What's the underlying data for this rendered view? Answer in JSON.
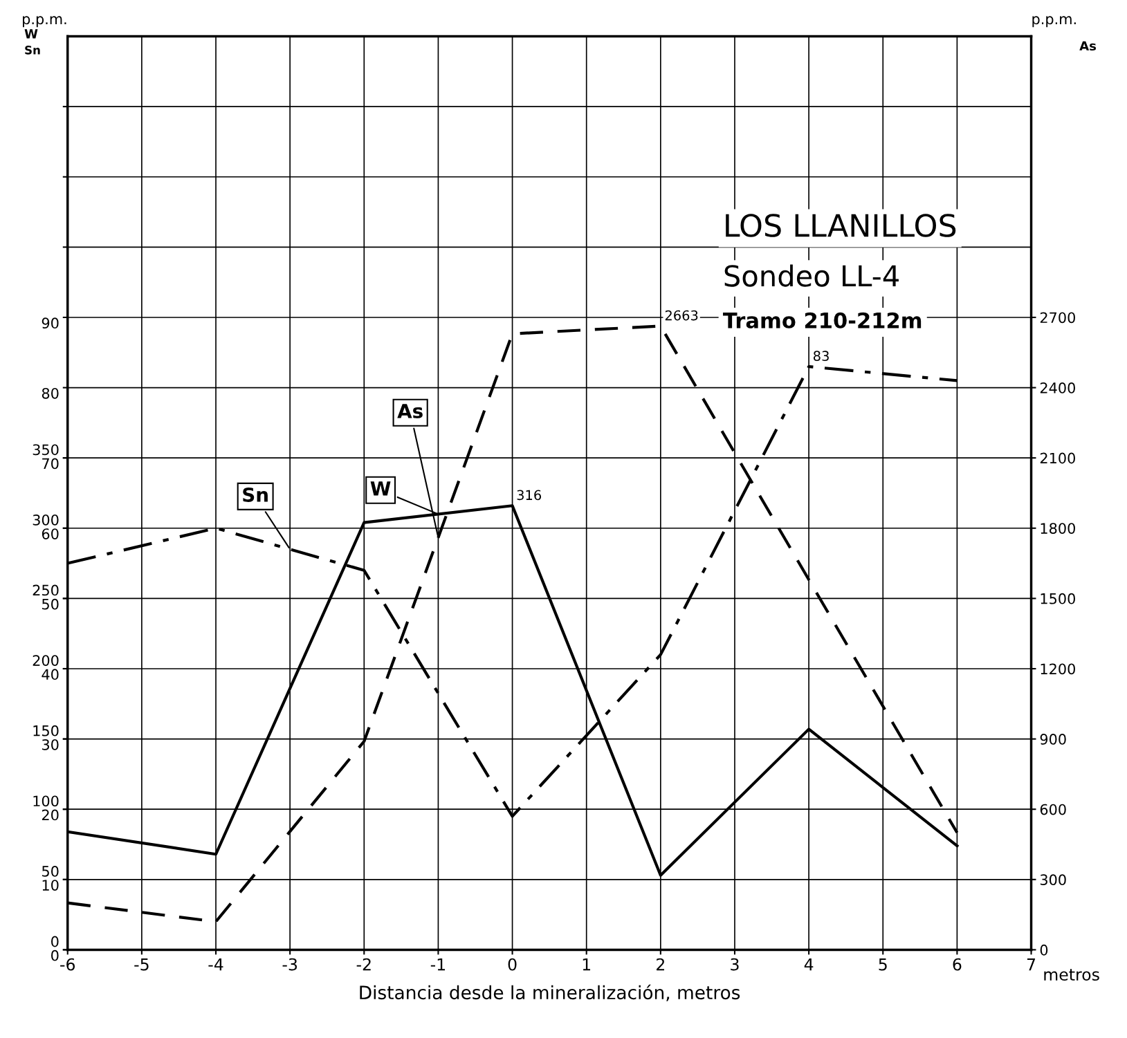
{
  "chart_data": {
    "type": "line",
    "title": "LOS LLANILLOS",
    "subtitle": "Sondeo LL-4",
    "xlabel": "Distancia desde la mineralización, metros",
    "ylabel": "p.p.m.",
    "y2label": "p.p.m.",
    "annotations": [
      "Tramo 210-212m",
      "metros",
      "W",
      "Sn",
      "As"
    ],
    "x": [
      -6,
      -4,
      -2,
      0,
      2,
      4,
      6
    ],
    "series": [
      {
        "name": "W",
        "color": "#000000",
        "line_style": "solid",
        "axis": "y3",
        "values": [
          84,
          68,
          304,
          316,
          53,
          157,
          74
        ],
        "value_labels": [
          null,
          null,
          null,
          "316",
          null,
          null,
          null
        ]
      },
      {
        "name": "Sn",
        "color": "#000000",
        "line_style": "dashdot",
        "axis": "y",
        "values": [
          55,
          60,
          54,
          19,
          42,
          83,
          81
        ],
        "value_labels": [
          null,
          null,
          null,
          null,
          null,
          "83",
          null
        ]
      },
      {
        "name": "As",
        "color": "#000000",
        "line_style": "dashed",
        "axis": "y2",
        "values": [
          200,
          120,
          890,
          2630,
          2663,
          1580,
          500
        ],
        "value_labels": [
          null,
          null,
          null,
          null,
          "2663",
          null,
          null
        ]
      }
    ],
    "xlim": [
      -6,
      7
    ],
    "xticks": [
      -6,
      -5,
      -4,
      -3,
      -2,
      -1,
      0,
      1,
      2,
      3,
      4,
      5,
      6,
      7
    ],
    "ylim": [
      0,
      130
    ],
    "yticks": [
      0,
      10,
      20,
      30,
      40,
      50,
      60,
      70,
      80,
      90,
      {
        "value": 100,
        "label": null
      },
      {
        "value": 110,
        "label": null
      },
      {
        "value": 120,
        "label": null
      }
    ],
    "y3lim": [
      0,
      650
    ],
    "y3ticks": [
      0,
      50,
      100,
      150,
      200,
      250,
      300,
      350
    ],
    "y2lim": [
      0,
      3900
    ],
    "y2ticks": [
      0,
      300,
      600,
      900,
      1200,
      1500,
      1800,
      2100,
      2400,
      2700
    ],
    "grid": true,
    "marker": "none"
  }
}
